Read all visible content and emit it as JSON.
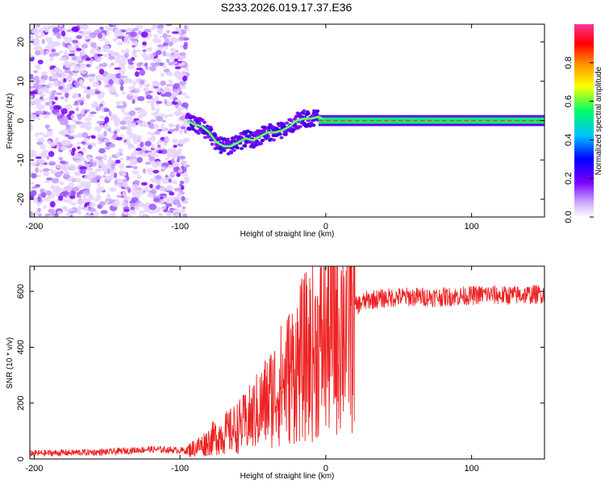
{
  "title": "S233.2026.019.17.37.E36",
  "chart_data": [
    {
      "type": "heatmap",
      "title": "S233.2026.019.17.37.E36",
      "xlabel": "Height of straight line (km)",
      "ylabel": "Frequency (Hz)",
      "xlim": [
        -203,
        150
      ],
      "ylim": [
        -24.5,
        24.5
      ],
      "xticks": [
        -200,
        -100,
        0,
        100
      ],
      "xtick_labels": [
        "-200",
        "-100",
        "0",
        "100"
      ],
      "yticks": [
        20,
        10,
        0,
        -10,
        -20
      ],
      "ytick_labels": [
        "20",
        "10",
        "0",
        "-10",
        "-20"
      ],
      "colorbar": {
        "label": "Normalized spectral amplitude",
        "range": [
          0,
          1
        ],
        "ticks": [
          0.0,
          0.2,
          0.4,
          0.6,
          0.8
        ],
        "tick_labels": [
          "0.0",
          "0.2",
          "0.4",
          "0.6",
          "0.8"
        ],
        "colormap": [
          "#ffffff",
          "#c9a3ff",
          "#7a00ff",
          "#0000ff",
          "#00bfff",
          "#00ff66",
          "#ffff00",
          "#ff8800",
          "#ff0000",
          "#ff3399"
        ]
      },
      "carrier_track": {
        "x": [
          -95,
          -90,
          -85,
          -80,
          -75,
          -70,
          -65,
          -60,
          -55,
          -50,
          -45,
          -40,
          -35,
          -30,
          -25,
          -20,
          -15,
          -10,
          -5,
          0,
          10,
          50,
          95,
          100,
          110,
          150
        ],
        "y": [
          0,
          -1,
          -1.5,
          -3,
          -5.5,
          -6.5,
          -6.5,
          -5.5,
          -4.5,
          -5,
          -4,
          -3,
          -3,
          -2.5,
          -1.5,
          0,
          0.5,
          0.5,
          1,
          0,
          0,
          0,
          0,
          0,
          0,
          0
        ]
      },
      "noise_region_x": [
        -203,
        -95
      ]
    },
    {
      "type": "line",
      "xlabel": "Height of straight line (km)",
      "ylabel": "SNR (10 * v/v)",
      "xlim": [
        -203,
        150
      ],
      "ylim": [
        0,
        690
      ],
      "xticks": [
        -200,
        -100,
        0,
        100
      ],
      "xtick_labels": [
        "-200",
        "-100",
        "0",
        "100"
      ],
      "yticks": [
        0,
        200,
        400,
        600
      ],
      "ytick_labels": [
        "0",
        "200",
        "400",
        "600"
      ],
      "series": [
        {
          "name": "SNR",
          "color": "#ee2222",
          "x": [
            -203,
            -150,
            -120,
            -95,
            -85,
            -75,
            -65,
            -55,
            -45,
            -35,
            -25,
            -15,
            -10,
            -5,
            0,
            5,
            10,
            15,
            20,
            25,
            30,
            40,
            50,
            60,
            80,
            100,
            110,
            120,
            150
          ],
          "y": [
            20,
            25,
            35,
            30,
            50,
            80,
            100,
            130,
            180,
            240,
            300,
            360,
            380,
            400,
            430,
            460,
            490,
            520,
            545,
            560,
            570,
            575,
            580,
            580,
            580,
            585,
            590,
            585,
            590
          ]
        }
      ]
    }
  ]
}
